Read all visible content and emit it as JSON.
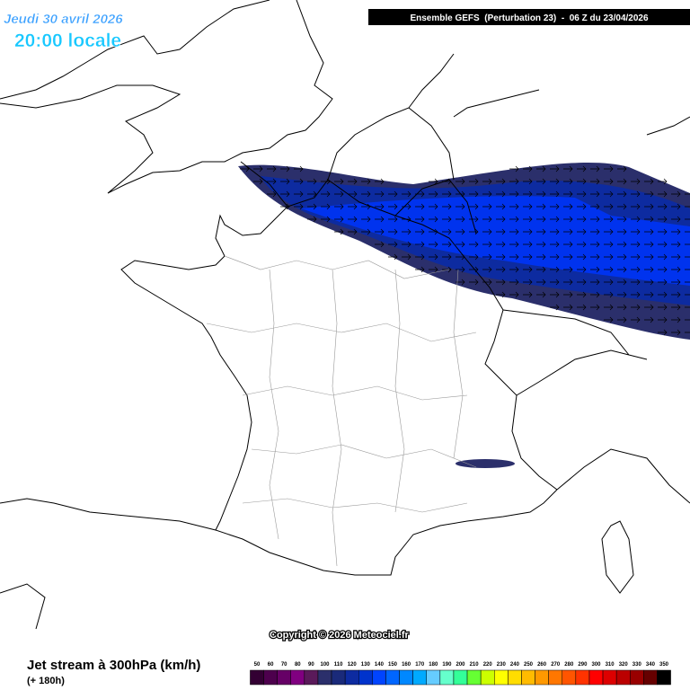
{
  "header": {
    "date": "Jeudi 30 avril 2026",
    "time": "20:00 locale",
    "model": "Ensemble GEFS  (Perturbation 23)  -  06 Z du 23/04/2026"
  },
  "copyright": "Copyright © 2026 Meteociel.fr",
  "footer": {
    "title": "Jet stream à 300hPa (km/h)",
    "lead": "(+ 180h)"
  },
  "legend": {
    "ticks": [
      50,
      60,
      70,
      80,
      90,
      100,
      110,
      120,
      130,
      140,
      150,
      160,
      170,
      180,
      190,
      200,
      210,
      220,
      230,
      240,
      250,
      260,
      270,
      280,
      290,
      300,
      310,
      320,
      330,
      340,
      350
    ],
    "colors": [
      "#330033",
      "#4d004d",
      "#660066",
      "#800080",
      "#5a1a5a",
      "#2b2f6b",
      "#1a2a7a",
      "#0d2ba0",
      "#0033cc",
      "#0044ff",
      "#0066ff",
      "#0088ff",
      "#00aaff",
      "#66ccff",
      "#66ffcc",
      "#33ff99",
      "#66ff33",
      "#ccff00",
      "#ffff00",
      "#ffdd00",
      "#ffbb00",
      "#ff9900",
      "#ff7700",
      "#ff5500",
      "#ff3300",
      "#ff0000",
      "#dd0000",
      "#bb0000",
      "#990000",
      "#660000",
      "#000000"
    ]
  }
}
